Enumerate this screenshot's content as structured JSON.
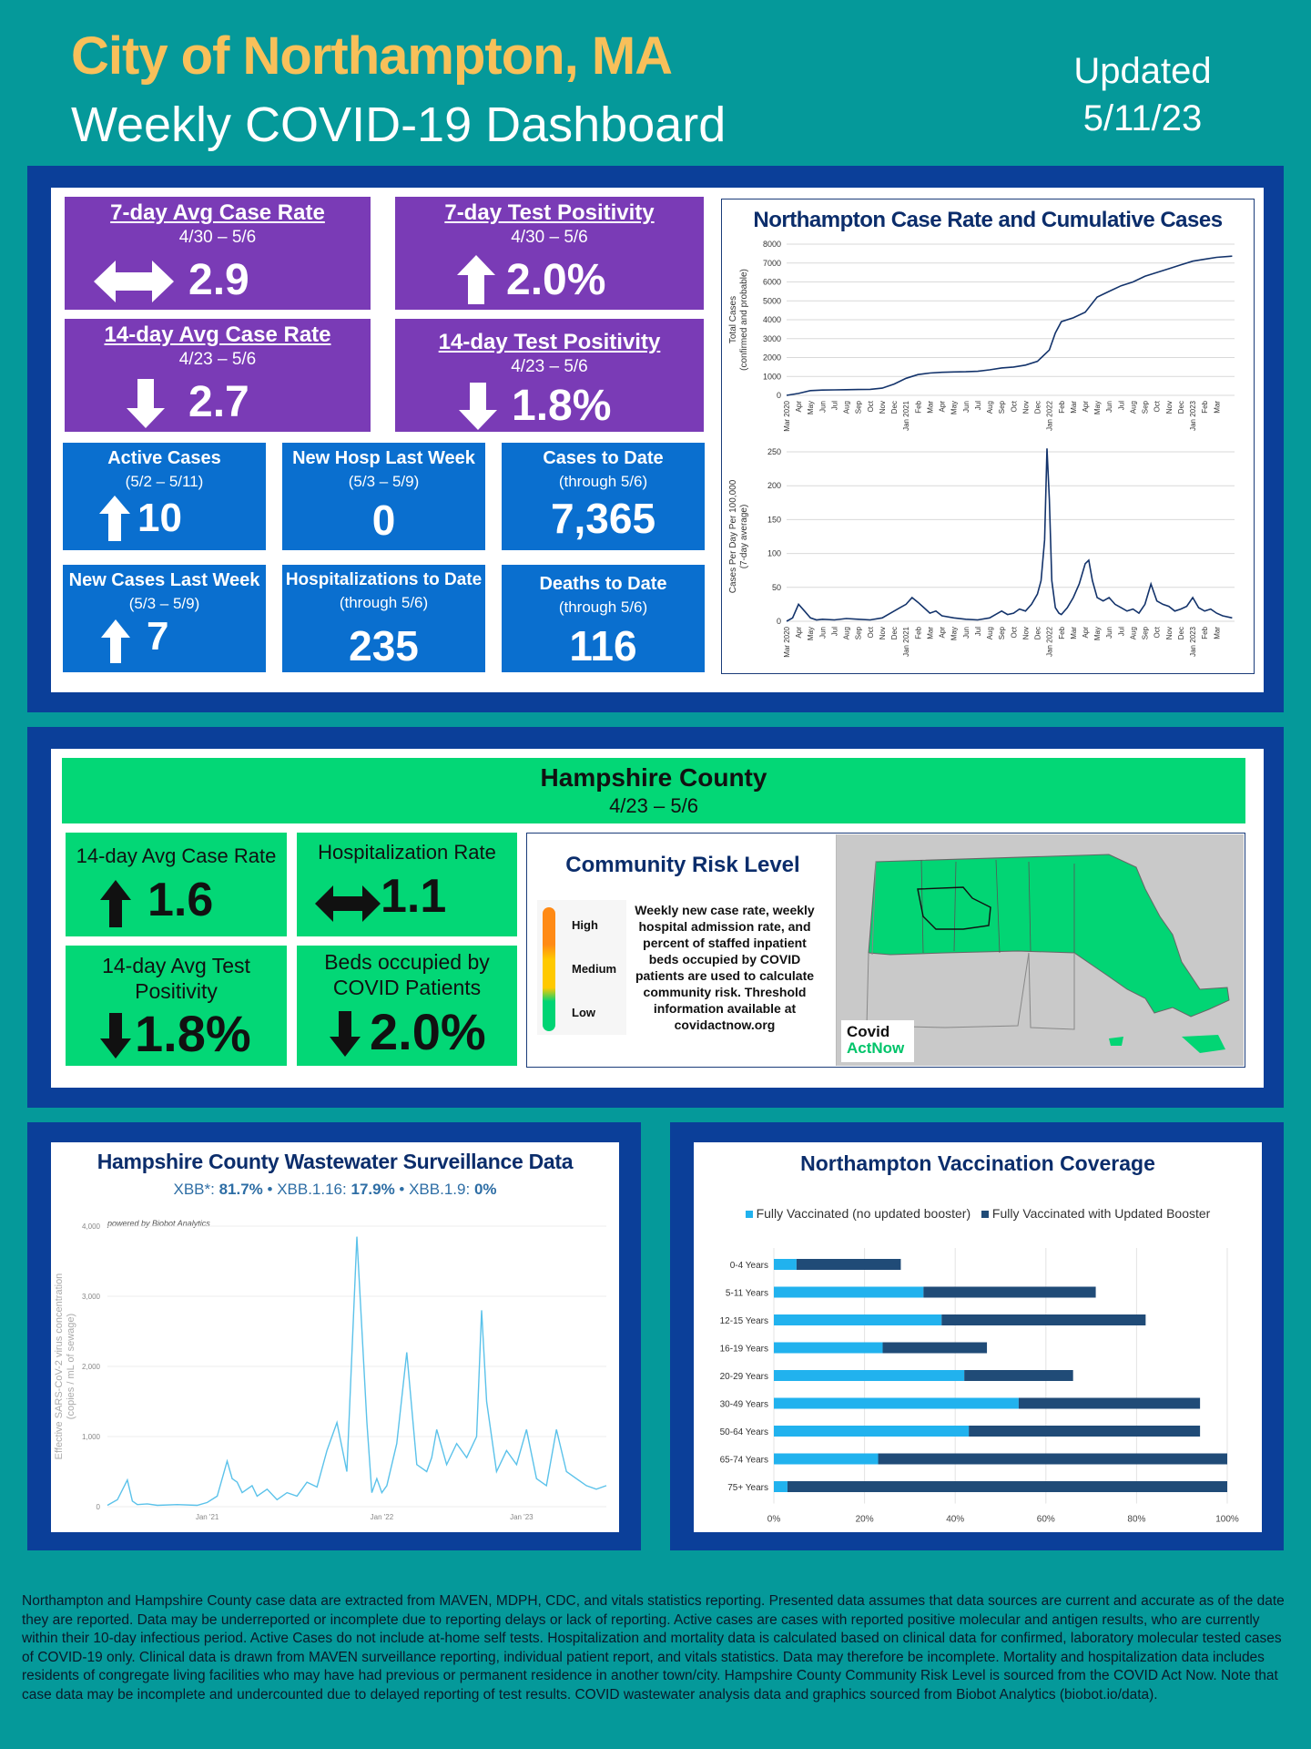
{
  "header": {
    "title": "City of Northampton, MA",
    "subtitle": "Weekly COVID-19 Dashboard",
    "updated_label": "Updated",
    "updated_date": "5/11/23"
  },
  "metrics": {
    "case_rate_7": {
      "title": "7-day Avg Case Rate",
      "range": "4/30 – 5/6",
      "value": "2.9",
      "trend": "same"
    },
    "test_pos_7": {
      "title": "7-day Test Positivity",
      "range": "4/30 – 5/6",
      "value": "2.0%",
      "trend": "up"
    },
    "case_rate_14": {
      "title": "14-day Avg Case Rate",
      "range": "4/23 – 5/6",
      "value": "2.7",
      "trend": "down"
    },
    "test_pos_14": {
      "title": "14-day Test Positivity",
      "range": "4/23 – 5/6",
      "value": "1.8%",
      "trend": "down"
    },
    "active_cases": {
      "title": "Active Cases",
      "range": "(5/2 – 5/11)",
      "value": "10",
      "trend": "up"
    },
    "new_hosp": {
      "title": "New Hosp Last Week",
      "range": "(5/3 – 5/9)",
      "value": "0"
    },
    "cases_to_date": {
      "title": "Cases to Date",
      "range": "(through 5/6)",
      "value": "7,365"
    },
    "new_cases": {
      "title": "New Cases Last Week",
      "range": "(5/3 – 5/9)",
      "value": "7",
      "trend": "up"
    },
    "hosp_to_date": {
      "title": "Hospitalizations to Date",
      "range": "(through 5/6)",
      "value": "235"
    },
    "deaths_to_date": {
      "title": "Deaths to Date",
      "range": "(through 5/6)",
      "value": "116"
    }
  },
  "case_chart_title": "Northampton Case Rate and Cumulative Cases",
  "county": {
    "title": "Hampshire County",
    "range": "4/23 – 5/6",
    "case_rate": {
      "title": "14-day Avg Case Rate",
      "value": "1.6",
      "trend": "up"
    },
    "hosp_rate": {
      "title": "Hospitalization Rate",
      "value": "1.1",
      "trend": "same"
    },
    "test_pos": {
      "title": "14-day Avg Test Positivity",
      "value": "1.8%",
      "trend": "down"
    },
    "beds": {
      "title": "Beds occupied by COVID Patients",
      "value": "2.0%",
      "trend": "down"
    },
    "risk": {
      "title": "Community Risk Level",
      "levels": [
        "High",
        "Medium",
        "Low"
      ],
      "description": "Weekly new case rate, weekly hospital admission rate, and percent of staffed inpatient beds occupied by COVID patients are used to calculate community risk. Threshold information available at covidactnow.org",
      "logo_top": "Covid",
      "logo_bottom": "ActNow",
      "colors": {
        "high": "#ff8a15",
        "medium": "#ffc900",
        "low": "#00d474"
      }
    }
  },
  "wastewater": {
    "title": "Hampshire County Wastewater Surveillance Data",
    "variants": [
      {
        "name": "XBB*:",
        "value": "81.7%"
      },
      {
        "name": "XBB.1.16:",
        "value": "17.9%"
      },
      {
        "name": "XBB.1.9:",
        "value": "0%"
      }
    ],
    "credit": "powered by Biobot Analytics"
  },
  "vaccination": {
    "title": "Northampton Vaccination Coverage",
    "legend": [
      "Fully Vaccinated (no updated booster)",
      "Fully Vaccinated with Updated Booster"
    ]
  },
  "footer": "Northampton and Hampshire County case data are extracted from MAVEN, MDPH, CDC, and vitals statistics reporting. Presented data assumes that data sources are current and accurate as of the date they are reported. Data may be underreported or incomplete due to reporting delays or lack of reporting. Active cases are cases with reported positive molecular and antigen results, who are currently within their 10-day infectious period. Active Cases do not include at-home self tests. Hospitalization and mortality data is calculated based on clinical data for confirmed, laboratory molecular tested cases of COVID-19 only. Clinical data is drawn from MAVEN surveillance reporting, individual patient report, and vitals statistics. Data may therefore be incomplete. Mortality and hospitalization data includes residents of congregate living facilities who may have had previous or permanent residence in another town/city. Hampshire County Community Risk Level is sourced from the COVID Act Now. Note that case data may be incomplete and undercounted due to delayed reporting of test results. COVID wastewater analysis data and graphics sourced from Biobot Analytics (biobot.io/data).",
  "chart_data": [
    {
      "type": "line",
      "ylabel": "Total Cases (confirmed and probable)",
      "ylim": [
        0,
        8000
      ],
      "yticks": [
        "0",
        "1000",
        "2000",
        "3000",
        "4000",
        "5000",
        "6000",
        "7000",
        "8000"
      ],
      "xticks": [
        "Mar 2020",
        "Apr",
        "May",
        "Jun",
        "Jul",
        "Aug",
        "Sep",
        "Oct",
        "Nov",
        "Dec",
        "Jan 2021",
        "Feb",
        "Mar",
        "Apr",
        "May",
        "Jun",
        "Jul",
        "Aug",
        "Sep",
        "Oct",
        "Nov",
        "Dec",
        "Jan 2022",
        "Feb",
        "Mar",
        "Apr",
        "May",
        "Jun",
        "Jul",
        "Aug",
        "Sep",
        "Oct",
        "Nov",
        "Dec",
        "Jan 2023",
        "Feb",
        "Mar"
      ],
      "x": [
        0,
        1,
        2,
        3,
        4,
        5,
        6,
        7,
        8,
        9,
        10,
        11,
        12,
        13,
        14,
        15,
        16,
        17,
        18,
        19,
        20,
        21,
        22,
        22.5,
        23,
        24,
        25,
        26,
        27,
        28,
        29,
        30,
        31,
        32,
        33,
        34,
        35,
        36,
        37.3
      ],
      "values": [
        0,
        100,
        250,
        280,
        290,
        300,
        310,
        320,
        380,
        600,
        900,
        1100,
        1180,
        1220,
        1240,
        1250,
        1270,
        1350,
        1450,
        1500,
        1600,
        1800,
        2400,
        3300,
        3900,
        4100,
        4400,
        5200,
        5500,
        5800,
        6000,
        6300,
        6500,
        6700,
        6900,
        7100,
        7200,
        7300,
        7365
      ]
    },
    {
      "type": "line",
      "ylabel": "Cases Per Day Per 100,000 (7-day average)",
      "ylim": [
        0,
        250
      ],
      "yticks": [
        "0",
        "50",
        "100",
        "150",
        "200",
        "250"
      ],
      "xticks": [
        "Mar 2020",
        "Apr",
        "May",
        "Jun",
        "Jul",
        "Aug",
        "Sep",
        "Oct",
        "Nov",
        "Dec",
        "Jan 2021",
        "Feb",
        "Mar",
        "Apr",
        "May",
        "Jun",
        "Jul",
        "Aug",
        "Sep",
        "Oct",
        "Nov",
        "Dec",
        "Jan 2022",
        "Feb",
        "Mar",
        "Apr",
        "May",
        "Jun",
        "Jul",
        "Aug",
        "Sep",
        "Oct",
        "Nov",
        "Dec",
        "Jan 2023",
        "Feb",
        "Mar"
      ],
      "x": [
        0,
        0.5,
        1,
        1.5,
        2,
        2.5,
        3,
        4,
        5,
        6,
        7,
        8,
        9,
        9.5,
        10,
        10.5,
        11,
        11.5,
        12,
        12.5,
        13,
        14,
        15,
        16,
        17,
        17.5,
        18,
        18.5,
        19,
        19.5,
        20,
        20.5,
        21,
        21.3,
        21.6,
        21.8,
        22,
        22.2,
        22.5,
        22.8,
        23,
        23.5,
        24,
        24.5,
        25,
        25.3,
        25.6,
        26,
        26.5,
        27,
        27.5,
        28,
        28.5,
        29,
        29.5,
        30,
        30.5,
        31,
        31.5,
        32,
        32.5,
        33,
        33.5,
        34,
        34.5,
        35,
        35.5,
        36,
        36.5,
        37.3
      ],
      "values": [
        0,
        5,
        25,
        15,
        5,
        2,
        3,
        2,
        4,
        3,
        2,
        5,
        15,
        20,
        25,
        35,
        28,
        20,
        12,
        15,
        8,
        5,
        3,
        2,
        5,
        10,
        15,
        10,
        12,
        18,
        15,
        25,
        40,
        60,
        120,
        255,
        180,
        60,
        20,
        12,
        10,
        20,
        35,
        55,
        85,
        90,
        60,
        35,
        30,
        35,
        25,
        20,
        15,
        18,
        12,
        25,
        55,
        30,
        25,
        22,
        15,
        18,
        22,
        35,
        20,
        15,
        18,
        12,
        8,
        5
      ]
    },
    {
      "type": "line",
      "ylabel": "Effective SARS-CoV-2 virus concentration (copies / mL of sewage)",
      "ylim": [
        0,
        4000
      ],
      "yticks": [
        "0",
        "1,000",
        "2,000",
        "3,000",
        "4,000"
      ],
      "xticks": [
        "Jan '21",
        "Jan '22",
        "Jan '23"
      ],
      "x": [
        0,
        0.02,
        0.04,
        0.05,
        0.06,
        0.08,
        0.1,
        0.14,
        0.18,
        0.2,
        0.22,
        0.24,
        0.25,
        0.26,
        0.27,
        0.29,
        0.3,
        0.32,
        0.34,
        0.36,
        0.38,
        0.4,
        0.42,
        0.44,
        0.46,
        0.48,
        0.5,
        0.52,
        0.53,
        0.54,
        0.55,
        0.56,
        0.58,
        0.6,
        0.62,
        0.64,
        0.65,
        0.66,
        0.68,
        0.7,
        0.72,
        0.74,
        0.75,
        0.76,
        0.78,
        0.8,
        0.82,
        0.84,
        0.86,
        0.88,
        0.9,
        0.92,
        0.94,
        0.96,
        0.98,
        1.0
      ],
      "values": [
        20,
        100,
        380,
        80,
        30,
        40,
        20,
        30,
        20,
        60,
        150,
        650,
        400,
        350,
        200,
        300,
        150,
        250,
        100,
        200,
        150,
        350,
        280,
        800,
        1200,
        500,
        3850,
        1200,
        200,
        400,
        200,
        300,
        900,
        2200,
        600,
        500,
        700,
        1100,
        600,
        900,
        700,
        1000,
        2800,
        1500,
        500,
        800,
        600,
        1100,
        400,
        300,
        1100,
        500,
        400,
        300,
        250,
        300
      ]
    },
    {
      "type": "bar",
      "categories": [
        "0-4 Years",
        "5-11 Years",
        "12-15 Years",
        "16-19 Years",
        "20-29 Years",
        "30-49 Years",
        "50-64 Years",
        "65-74 Years",
        "75+ Years"
      ],
      "series": [
        {
          "name": "Fully Vaccinated (no updated booster)",
          "values": [
            5,
            33,
            37,
            24,
            42,
            54,
            43,
            23,
            3
          ]
        },
        {
          "name": "Fully Vaccinated with Updated Booster",
          "values": [
            23,
            38,
            45,
            23,
            24,
            40,
            51,
            77,
            97
          ]
        }
      ],
      "xticks": [
        "0%",
        "20%",
        "40%",
        "60%",
        "80%",
        "100%"
      ],
      "xlim": [
        0,
        100
      ]
    }
  ]
}
